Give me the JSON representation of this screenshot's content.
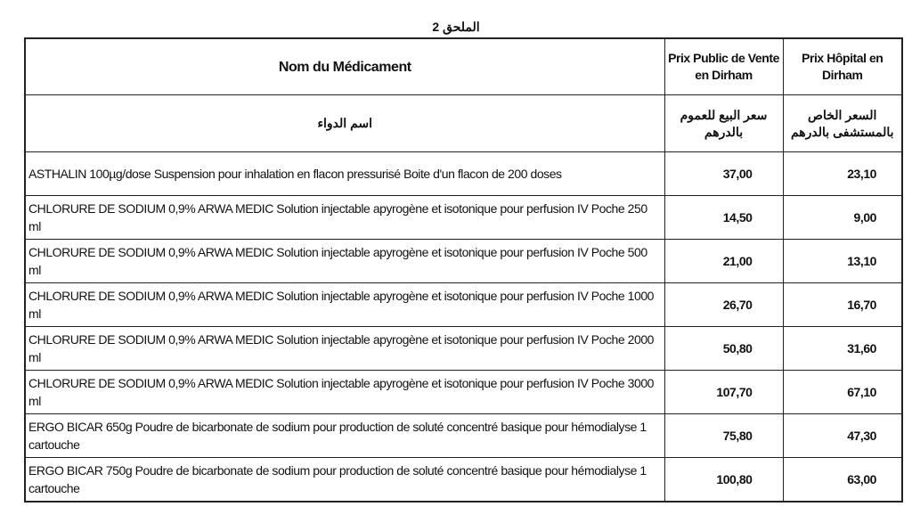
{
  "title": "الملحق 2",
  "headers": {
    "name_fr": "Nom du Médicament",
    "public_fr": "Prix Public de Vente en Dirham",
    "hospital_fr": "Prix Hôpital en Dirham",
    "name_ar": "اسم الدواء",
    "public_ar": "سعر البيع للعموم بالدرهم",
    "hospital_ar": "السعر الخاص بالمستشفى بالدرهم"
  },
  "rows": [
    {
      "name": "ASTHALIN 100µg/dose Suspension pour inhalation en flacon pressurisé Boite d'un flacon de 200 doses",
      "public": "37,00",
      "hospital": "23,10"
    },
    {
      "name": "CHLORURE DE SODIUM 0,9% ARWA MEDIC  Solution injectable apyrogène et isotonique pour perfusion IV Poche 250 ml",
      "public": "14,50",
      "hospital": "9,00"
    },
    {
      "name": "CHLORURE DE SODIUM 0,9% ARWA MEDIC  Solution injectable apyrogène et isotonique pour perfusion IV Poche 500 ml",
      "public": "21,00",
      "hospital": "13,10"
    },
    {
      "name": "CHLORURE DE SODIUM 0,9% ARWA MEDIC  Solution injectable apyrogène et isotonique pour perfusion IV Poche 1000 ml",
      "public": "26,70",
      "hospital": "16,70"
    },
    {
      "name": "CHLORURE DE SODIUM 0,9% ARWA MEDIC  Solution injectable apyrogène et isotonique pour perfusion IV Poche 2000 ml",
      "public": "50,80",
      "hospital": "31,60"
    },
    {
      "name": "CHLORURE DE SODIUM 0,9% ARWA MEDIC  Solution injectable apyrogène et isotonique pour perfusion IV Poche 3000 ml",
      "public": "107,70",
      "hospital": "67,10"
    },
    {
      "name": "ERGO BICAR  650g Poudre de bicarbonate de sodium pour production de soluté concentré basique pour hémodialyse 1 cartouche",
      "public": "75,80",
      "hospital": "47,30"
    },
    {
      "name": "ERGO BICAR  750g Poudre de bicarbonate de sodium pour production de soluté concentré basique pour hémodialyse 1 cartouche",
      "public": "100,80",
      "hospital": "63,00"
    }
  ]
}
